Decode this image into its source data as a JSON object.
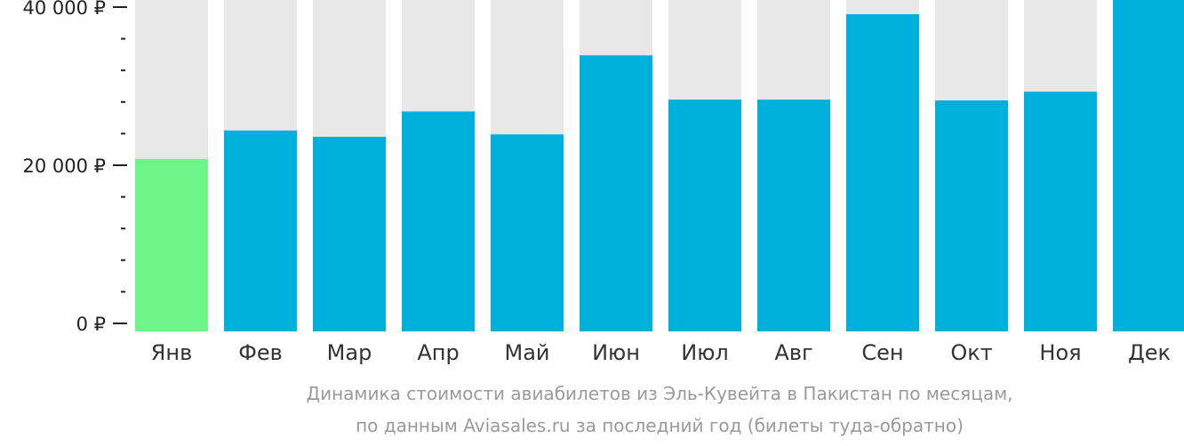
{
  "colors": {
    "background_bar": "#e8e8e8",
    "bar": "#00b0dc",
    "bar_highlight": "#6ef589",
    "axis": "#222222",
    "caption": "#9a9a9a"
  },
  "chart_data": {
    "type": "bar",
    "categories": [
      "Янв",
      "Фев",
      "Мар",
      "Апр",
      "Май",
      "Июн",
      "Июл",
      "Авг",
      "Сен",
      "Окт",
      "Ноя",
      "Дек"
    ],
    "values": [
      20800,
      24400,
      23600,
      26800,
      23900,
      33900,
      28300,
      28300,
      39100,
      28200,
      29300,
      41000
    ],
    "highlight_index": 0,
    "ylim": [
      0,
      41000
    ],
    "yticks": [
      {
        "value": 0,
        "label": "0 ₽"
      },
      {
        "value": 20000,
        "label": "20 000 ₽"
      },
      {
        "value": 40000,
        "label": "40 000 ₽"
      }
    ],
    "minor_ytick_step": 4000,
    "xlabel": "",
    "ylabel": "",
    "legend": "none",
    "grid": false
  },
  "caption": {
    "line1": "Динамика стоимости авиабилетов из Эль-Кувейта в Пакистан по месяцам,",
    "line2": "по данным Aviasales.ru за последний год (билеты туда-обратно)"
  }
}
